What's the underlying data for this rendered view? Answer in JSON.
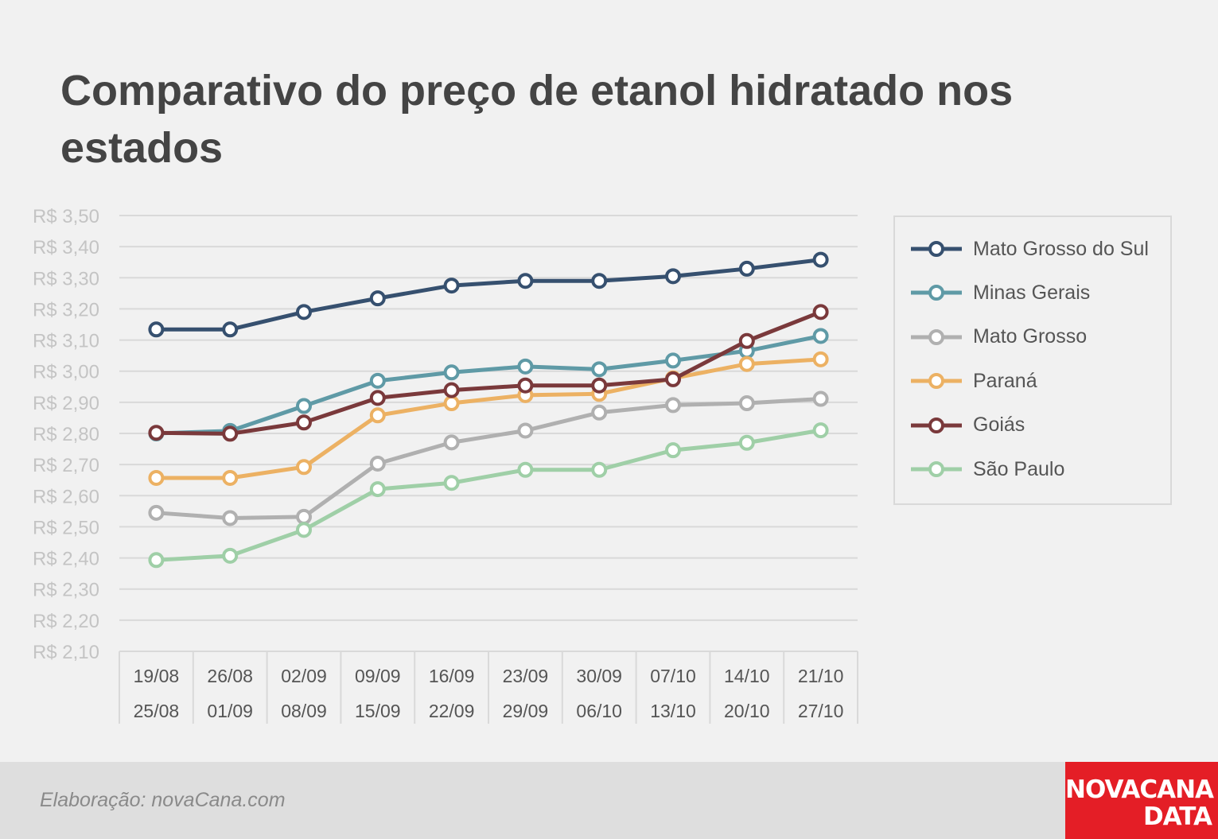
{
  "title": "Comparativo do preço de etanol hidratado nos estados",
  "footer": {
    "credit": "Elaboração: novaCana.com",
    "logo_line1": "NOVACANA",
    "logo_line2": "DATA"
  },
  "chart_data": {
    "type": "line",
    "title": "Comparativo do preço de etanol hidratado nos estados",
    "xlabel": "",
    "ylabel": "",
    "ylim": [
      2.1,
      3.5
    ],
    "yticks": [
      3.5,
      3.4,
      3.3,
      3.2,
      3.1,
      3.0,
      2.9,
      2.8,
      2.7,
      2.6,
      2.5,
      2.4,
      2.3,
      2.2,
      2.1
    ],
    "ytick_labels": [
      "R$ 3,50",
      "R$ 3,40",
      "R$ 3,30",
      "R$ 3,20",
      "R$ 3,10",
      "R$ 3,00",
      "R$ 2,90",
      "R$ 2,80",
      "R$ 2,70",
      "R$ 2,60",
      "R$ 2,50",
      "R$ 2,40",
      "R$ 2,30",
      "R$ 2,20",
      "R$ 2,10"
    ],
    "categories": [
      [
        "19/08",
        "25/08"
      ],
      [
        "26/08",
        "01/09"
      ],
      [
        "02/09",
        "08/09"
      ],
      [
        "09/09",
        "15/09"
      ],
      [
        "16/09",
        "22/09"
      ],
      [
        "23/09",
        "29/09"
      ],
      [
        "30/09",
        "06/10"
      ],
      [
        "07/10",
        "13/10"
      ],
      [
        "14/10",
        "20/10"
      ],
      [
        "21/10",
        "27/10"
      ]
    ],
    "grid": true,
    "legend_position": "right",
    "series": [
      {
        "name": "Mato Grosso do Sul",
        "color": "#36506f",
        "values": [
          3.134,
          3.134,
          3.19,
          3.234,
          3.275,
          3.29,
          3.29,
          3.305,
          3.329,
          3.358
        ]
      },
      {
        "name": "Minas Gerais",
        "color": "#5f9aa6",
        "values": [
          2.8,
          2.808,
          2.888,
          2.969,
          2.996,
          3.015,
          3.006,
          3.034,
          3.065,
          3.113
        ]
      },
      {
        "name": "Mato Grosso",
        "color": "#b0b0b0",
        "values": [
          2.545,
          2.528,
          2.532,
          2.703,
          2.771,
          2.809,
          2.867,
          2.891,
          2.897,
          2.911
        ]
      },
      {
        "name": "Paraná",
        "color": "#ecb163",
        "values": [
          2.657,
          2.657,
          2.692,
          2.858,
          2.897,
          2.923,
          2.927,
          2.977,
          3.023,
          3.038
        ]
      },
      {
        "name": "Goiás",
        "color": "#7a393b",
        "values": [
          2.802,
          2.799,
          2.835,
          2.914,
          2.939,
          2.954,
          2.954,
          2.974,
          3.097,
          3.19
        ]
      },
      {
        "name": "São Paulo",
        "color": "#9fcfa7",
        "values": [
          2.393,
          2.407,
          2.49,
          2.621,
          2.641,
          2.683,
          2.683,
          2.746,
          2.77,
          2.81
        ]
      }
    ]
  }
}
